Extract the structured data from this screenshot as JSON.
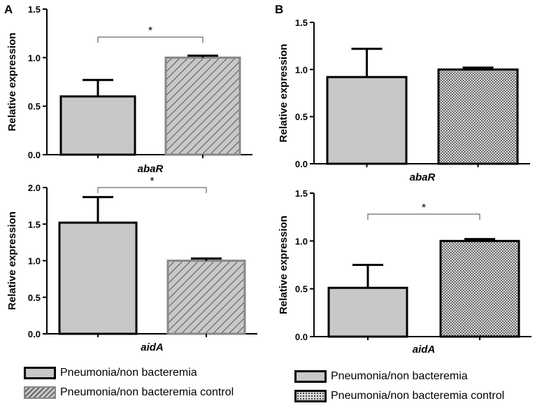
{
  "panels": [
    {
      "letter": "A"
    },
    {
      "letter": "B"
    }
  ],
  "colors": {
    "bar_solid": "#c8c8c8",
    "bar_edge": "#000000",
    "hatch_fill": "#c8c8c8",
    "hatch_line": "#555555",
    "dot_fill": "#d9d9d9",
    "dot_line": "#333333"
  },
  "legend_A": {
    "items": [
      {
        "label": "Pneumonia/non bacteremia",
        "pattern": "solid"
      },
      {
        "label": "Pneumonia/non bacteremia control",
        "pattern": "hatch"
      }
    ]
  },
  "legend_B": {
    "items": [
      {
        "label": "Pneumonia/non bacteremia",
        "pattern": "solid"
      },
      {
        "label": "Pneumonia/non bacteremia control",
        "pattern": "dots"
      }
    ]
  },
  "chart_data": [
    {
      "id": "A-abaR",
      "panel": "A",
      "type": "bar",
      "xlabel": "abaR",
      "ylabel": "Relative expression",
      "ylim": [
        0,
        1.5
      ],
      "yticks": [
        "0.0",
        "0.5",
        "1.0",
        "1.5"
      ],
      "ytick_values": [
        0,
        0.5,
        1.0,
        1.5
      ],
      "categories": [
        "Pneumonia/non bacteremia",
        "Pneumonia/non bacteremia control"
      ],
      "values": [
        0.6,
        1.0
      ],
      "errors": [
        0.17,
        0.02
      ],
      "patterns": [
        "solid",
        "hatch"
      ],
      "significance": "*"
    },
    {
      "id": "A-aidA",
      "panel": "A",
      "type": "bar",
      "xlabel": "aidA",
      "ylabel": "Relative expression",
      "ylim": [
        0,
        2.0
      ],
      "yticks": [
        "0.0",
        "0.5",
        "1.0",
        "1.5",
        "2.0"
      ],
      "ytick_values": [
        0,
        0.5,
        1.0,
        1.5,
        2.0
      ],
      "categories": [
        "Pneumonia/non bacteremia",
        "Pneumonia/non bacteremia control"
      ],
      "values": [
        1.52,
        1.0
      ],
      "errors": [
        0.35,
        0.03
      ],
      "patterns": [
        "solid",
        "hatch"
      ],
      "significance": "*"
    },
    {
      "id": "B-abaR",
      "panel": "B",
      "type": "bar",
      "xlabel": "abaR",
      "ylabel": "Relative expression",
      "ylim": [
        0,
        1.5
      ],
      "yticks": [
        "0.0",
        "0.5",
        "1.0",
        "1.5"
      ],
      "ytick_values": [
        0,
        0.5,
        1.0,
        1.5
      ],
      "categories": [
        "Pneumonia/non bacteremia",
        "Pneumonia/non bacteremia control"
      ],
      "values": [
        0.92,
        1.0
      ],
      "errors": [
        0.3,
        0.02
      ],
      "patterns": [
        "solid",
        "dots"
      ],
      "significance": ""
    },
    {
      "id": "B-aidA",
      "panel": "B",
      "type": "bar",
      "xlabel": "aidA",
      "ylabel": "Relative expression",
      "ylim": [
        0,
        1.5
      ],
      "yticks": [
        "0.0",
        "0.5",
        "1.0",
        "1.5"
      ],
      "ytick_values": [
        0,
        0.5,
        1.0,
        1.5
      ],
      "categories": [
        "Pneumonia/non bacteremia",
        "Pneumonia/non bacteremia control"
      ],
      "values": [
        0.51,
        1.0
      ],
      "errors": [
        0.24,
        0.02
      ],
      "patterns": [
        "solid",
        "dots"
      ],
      "significance": "*"
    }
  ]
}
